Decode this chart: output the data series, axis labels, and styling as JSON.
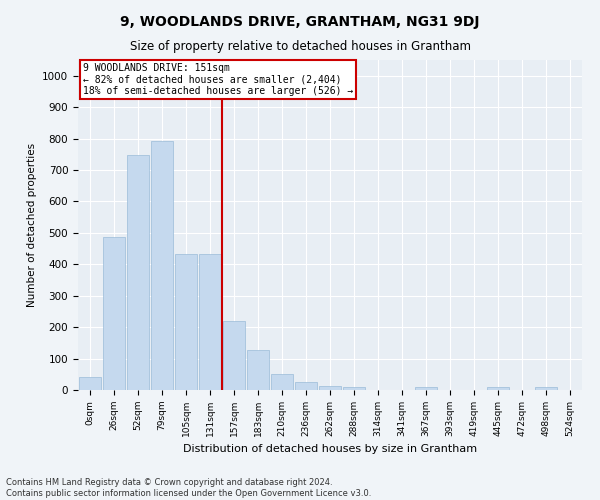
{
  "title": "9, WOODLANDS DRIVE, GRANTHAM, NG31 9DJ",
  "subtitle": "Size of property relative to detached houses in Grantham",
  "xlabel": "Distribution of detached houses by size in Grantham",
  "ylabel": "Number of detached properties",
  "footnote1": "Contains HM Land Registry data © Crown copyright and database right 2024.",
  "footnote2": "Contains public sector information licensed under the Open Government Licence v3.0.",
  "categories": [
    "0sqm",
    "26sqm",
    "52sqm",
    "79sqm",
    "105sqm",
    "131sqm",
    "157sqm",
    "183sqm",
    "210sqm",
    "236sqm",
    "262sqm",
    "288sqm",
    "314sqm",
    "341sqm",
    "367sqm",
    "393sqm",
    "419sqm",
    "445sqm",
    "472sqm",
    "498sqm",
    "524sqm"
  ],
  "values": [
    42,
    487,
    748,
    793,
    432,
    432,
    218,
    127,
    50,
    27,
    12,
    10,
    0,
    0,
    8,
    0,
    0,
    8,
    0,
    8,
    0
  ],
  "bar_color": "#c5d9ee",
  "bar_edge_color": "#9bbcd8",
  "marker_line_color": "#cc0000",
  "annotation_line1": "9 WOODLANDS DRIVE: 151sqm",
  "annotation_line2": "← 82% of detached houses are smaller (2,404)",
  "annotation_line3": "18% of semi-detached houses are larger (526) →",
  "annotation_box_color": "#cc0000",
  "ylim": [
    0,
    1050
  ],
  "yticks": [
    0,
    100,
    200,
    300,
    400,
    500,
    600,
    700,
    800,
    900,
    1000
  ],
  "fig_bg_color": "#f0f4f8",
  "plot_bg_color": "#e8eef4"
}
